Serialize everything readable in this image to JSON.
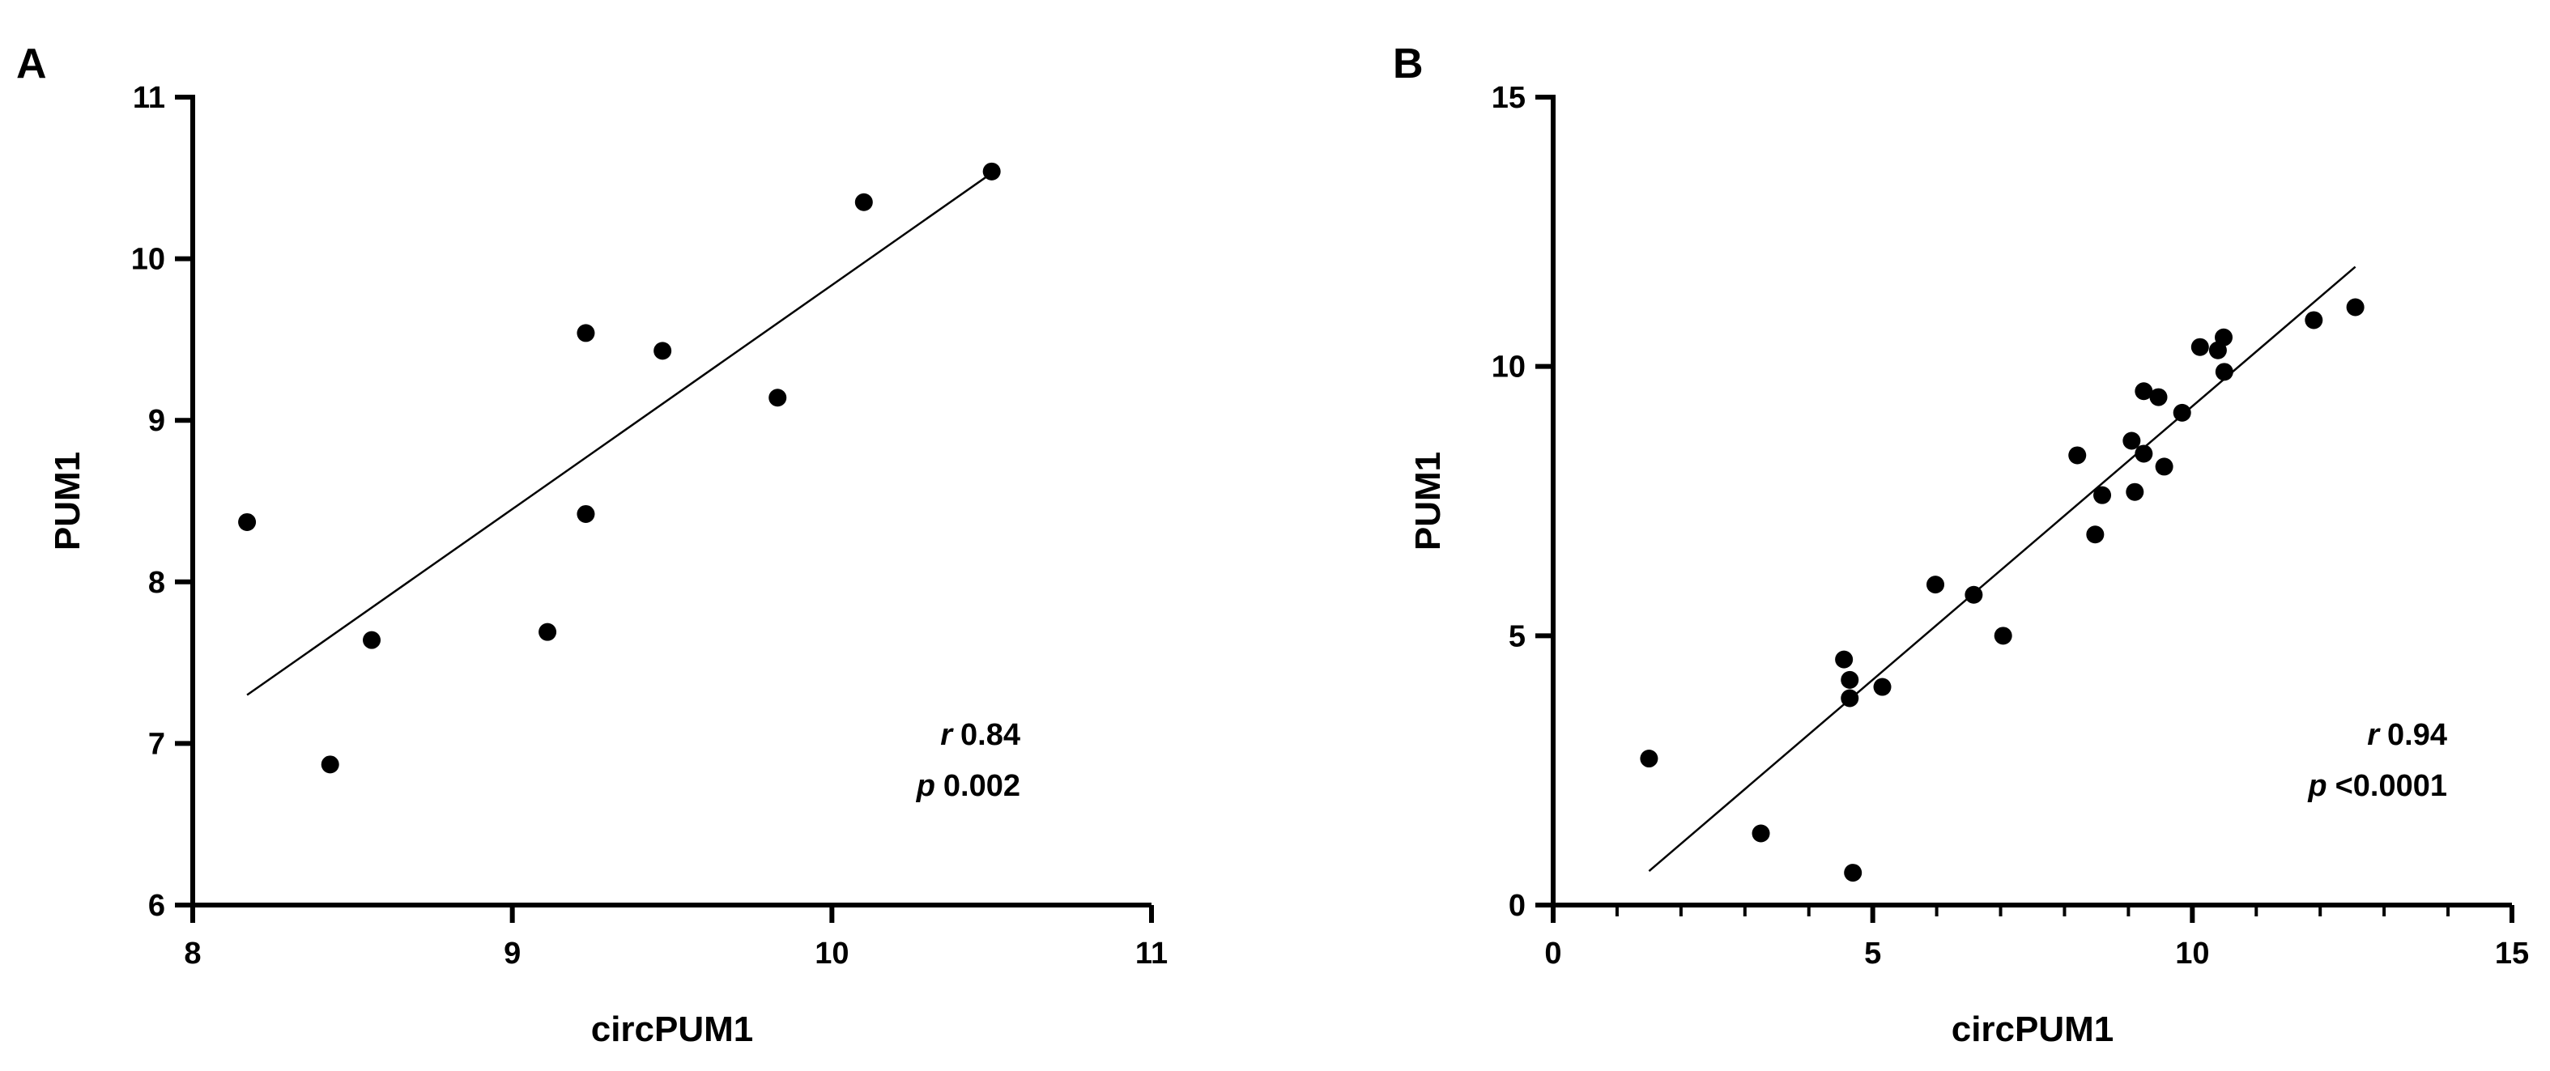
{
  "chart_data": [
    {
      "type": "scatter",
      "panel_label": "A",
      "xlabel": "circPUM1",
      "ylabel": "PUM1",
      "xlim": [
        8,
        11
      ],
      "ylim": [
        6,
        11
      ],
      "xticks": [
        8,
        9,
        10,
        11
      ],
      "yticks": [
        6,
        7,
        8,
        9,
        10,
        11
      ],
      "x_minor_ticks": [],
      "points": [
        {
          "x": 8.17,
          "y": 8.37
        },
        {
          "x": 8.43,
          "y": 6.87
        },
        {
          "x": 8.56,
          "y": 7.64
        },
        {
          "x": 9.11,
          "y": 7.69
        },
        {
          "x": 9.23,
          "y": 9.54
        },
        {
          "x": 9.23,
          "y": 8.42
        },
        {
          "x": 9.47,
          "y": 9.43
        },
        {
          "x": 9.83,
          "y": 9.14
        },
        {
          "x": 10.1,
          "y": 10.35
        },
        {
          "x": 10.5,
          "y": 10.54
        }
      ],
      "fit_line": {
        "x1": 8.17,
        "y1": 7.3,
        "x2": 10.5,
        "y2": 10.53
      },
      "stats": {
        "r_symbol": "r",
        "r_value": "0.84",
        "p_symbol": "p",
        "p_value": "0.002"
      }
    },
    {
      "type": "scatter",
      "panel_label": "B",
      "xlabel": "circPUM1",
      "ylabel": "PUM1",
      "xlim": [
        0,
        15
      ],
      "ylim": [
        0,
        15
      ],
      "xticks": [
        0,
        5,
        10,
        15
      ],
      "yticks": [
        0,
        5,
        10,
        15
      ],
      "x_minor_ticks": [
        1,
        2,
        3,
        4,
        6,
        7,
        8,
        9,
        11,
        12,
        13,
        14
      ],
      "points": [
        {
          "x": 1.5,
          "y": 2.72
        },
        {
          "x": 3.25,
          "y": 1.33
        },
        {
          "x": 4.55,
          "y": 4.56
        },
        {
          "x": 4.64,
          "y": 4.18
        },
        {
          "x": 4.64,
          "y": 3.84
        },
        {
          "x": 4.69,
          "y": 0.6
        },
        {
          "x": 5.15,
          "y": 4.05
        },
        {
          "x": 5.98,
          "y": 5.95
        },
        {
          "x": 6.58,
          "y": 5.76
        },
        {
          "x": 7.04,
          "y": 5.0
        },
        {
          "x": 8.2,
          "y": 8.35
        },
        {
          "x": 8.48,
          "y": 6.88
        },
        {
          "x": 8.59,
          "y": 7.61
        },
        {
          "x": 9.05,
          "y": 8.62
        },
        {
          "x": 9.1,
          "y": 7.67
        },
        {
          "x": 9.24,
          "y": 8.38
        },
        {
          "x": 9.24,
          "y": 9.54
        },
        {
          "x": 9.47,
          "y": 9.43
        },
        {
          "x": 9.56,
          "y": 8.14
        },
        {
          "x": 9.84,
          "y": 9.14
        },
        {
          "x": 10.12,
          "y": 10.36
        },
        {
          "x": 10.4,
          "y": 10.3
        },
        {
          "x": 10.49,
          "y": 10.54
        },
        {
          "x": 10.5,
          "y": 9.9
        },
        {
          "x": 11.9,
          "y": 10.86
        },
        {
          "x": 12.55,
          "y": 11.1
        }
      ],
      "fit_line": {
        "x1": 1.5,
        "y1": 0.63,
        "x2": 12.55,
        "y2": 11.85
      },
      "stats": {
        "r_symbol": "r",
        "r_value": "0.94",
        "p_symbol": "p",
        "p_value": "<0.0001"
      }
    }
  ]
}
